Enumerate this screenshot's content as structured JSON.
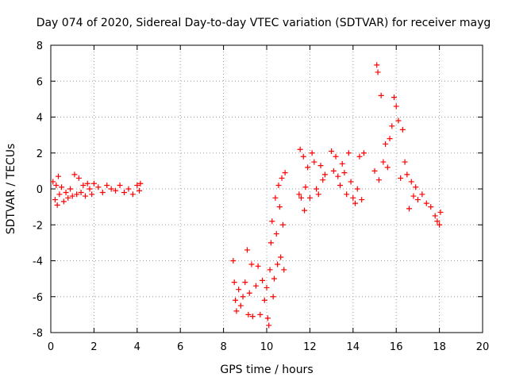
{
  "chart_data": {
    "type": "scatter",
    "title": "Day 074 of 2020, Sidereal Day-to-day VTEC variation (SDTVAR) for receiver mayg",
    "xlabel": "GPS time / hours",
    "ylabel": "SDTVAR / TECUs",
    "xlim": [
      0,
      20
    ],
    "ylim": [
      -8,
      8
    ],
    "xticks": [
      0,
      2,
      4,
      6,
      8,
      10,
      12,
      14,
      16,
      18,
      20
    ],
    "yticks": [
      -8,
      -6,
      -4,
      -2,
      0,
      2,
      4,
      6,
      8
    ],
    "grid": true,
    "marker": "+",
    "color": "#ff0000",
    "series": [
      {
        "name": "SDTVAR",
        "points": [
          [
            0.1,
            0.4
          ],
          [
            0.2,
            -0.6
          ],
          [
            0.25,
            0.2
          ],
          [
            0.3,
            -0.9
          ],
          [
            0.35,
            0.7
          ],
          [
            0.4,
            -0.3
          ],
          [
            0.5,
            0.1
          ],
          [
            0.6,
            -0.7
          ],
          [
            0.7,
            -0.2
          ],
          [
            0.8,
            -0.5
          ],
          [
            0.9,
            0.0
          ],
          [
            1.0,
            -0.4
          ],
          [
            1.1,
            0.8
          ],
          [
            1.2,
            -0.3
          ],
          [
            1.3,
            0.6
          ],
          [
            1.4,
            -0.2
          ],
          [
            1.5,
            0.2
          ],
          [
            1.6,
            -0.4
          ],
          [
            1.7,
            0.3
          ],
          [
            1.8,
            0.0
          ],
          [
            1.9,
            -0.3
          ],
          [
            2.0,
            0.3
          ],
          [
            2.2,
            0.1
          ],
          [
            2.4,
            -0.2
          ],
          [
            2.6,
            0.2
          ],
          [
            2.8,
            0.0
          ],
          [
            3.0,
            -0.1
          ],
          [
            3.2,
            0.2
          ],
          [
            3.4,
            -0.2
          ],
          [
            3.6,
            0.0
          ],
          [
            3.8,
            -0.3
          ],
          [
            4.0,
            0.2
          ],
          [
            4.1,
            -0.1
          ],
          [
            4.15,
            0.3
          ],
          [
            8.45,
            -4.0
          ],
          [
            8.5,
            -5.2
          ],
          [
            8.55,
            -6.2
          ],
          [
            8.6,
            -6.8
          ],
          [
            8.7,
            -5.6
          ],
          [
            8.8,
            -6.5
          ],
          [
            8.9,
            -6.0
          ],
          [
            9.0,
            -5.2
          ],
          [
            9.1,
            -3.4
          ],
          [
            9.15,
            -7.0
          ],
          [
            9.2,
            -5.8
          ],
          [
            9.3,
            -4.2
          ],
          [
            9.35,
            -7.1
          ],
          [
            9.5,
            -5.4
          ],
          [
            9.6,
            -4.3
          ],
          [
            9.7,
            -7.0
          ],
          [
            9.8,
            -5.1
          ],
          [
            9.9,
            -6.2
          ],
          [
            10.0,
            -5.5
          ],
          [
            10.05,
            -7.2
          ],
          [
            10.1,
            -7.6
          ],
          [
            10.15,
            -4.5
          ],
          [
            10.2,
            -3.0
          ],
          [
            10.25,
            -1.8
          ],
          [
            10.3,
            -6.0
          ],
          [
            10.35,
            -5.0
          ],
          [
            10.4,
            -0.5
          ],
          [
            10.45,
            -2.5
          ],
          [
            10.5,
            -4.2
          ],
          [
            10.55,
            0.2
          ],
          [
            10.6,
            -1.0
          ],
          [
            10.65,
            -3.8
          ],
          [
            10.7,
            0.6
          ],
          [
            10.75,
            -2.0
          ],
          [
            10.8,
            -4.5
          ],
          [
            10.85,
            0.9
          ],
          [
            11.5,
            -0.3
          ],
          [
            11.55,
            2.2
          ],
          [
            11.6,
            -0.5
          ],
          [
            11.7,
            1.8
          ],
          [
            11.75,
            -1.2
          ],
          [
            11.8,
            0.1
          ],
          [
            11.9,
            1.2
          ],
          [
            12.0,
            -0.5
          ],
          [
            12.1,
            2.0
          ],
          [
            12.2,
            1.5
          ],
          [
            12.3,
            0.0
          ],
          [
            12.4,
            -0.3
          ],
          [
            12.5,
            1.3
          ],
          [
            12.6,
            0.5
          ],
          [
            12.7,
            0.8
          ],
          [
            13.0,
            2.1
          ],
          [
            13.1,
            1.0
          ],
          [
            13.2,
            1.8
          ],
          [
            13.3,
            0.7
          ],
          [
            13.4,
            0.2
          ],
          [
            13.5,
            1.4
          ],
          [
            13.6,
            0.9
          ],
          [
            13.7,
            -0.3
          ],
          [
            13.8,
            2.0
          ],
          [
            13.9,
            0.4
          ],
          [
            14.0,
            -0.5
          ],
          [
            14.1,
            -0.8
          ],
          [
            14.2,
            0.0
          ],
          [
            14.3,
            1.8
          ],
          [
            14.4,
            -0.6
          ],
          [
            14.5,
            2.0
          ],
          [
            15.0,
            1.0
          ],
          [
            15.1,
            6.9
          ],
          [
            15.15,
            6.5
          ],
          [
            15.2,
            0.5
          ],
          [
            15.3,
            5.2
          ],
          [
            15.4,
            1.5
          ],
          [
            15.5,
            2.5
          ],
          [
            15.6,
            1.2
          ],
          [
            15.7,
            2.8
          ],
          [
            15.8,
            3.5
          ],
          [
            15.9,
            5.1
          ],
          [
            16.0,
            4.6
          ],
          [
            16.1,
            3.8
          ],
          [
            16.2,
            0.6
          ],
          [
            16.3,
            3.3
          ],
          [
            16.4,
            1.5
          ],
          [
            16.5,
            0.8
          ],
          [
            16.6,
            -1.1
          ],
          [
            16.7,
            0.4
          ],
          [
            16.8,
            -0.4
          ],
          [
            16.9,
            0.1
          ],
          [
            17.0,
            -0.6
          ],
          [
            17.2,
            -0.3
          ],
          [
            17.4,
            -0.8
          ],
          [
            17.6,
            -1.0
          ],
          [
            17.8,
            -1.5
          ],
          [
            17.9,
            -1.8
          ],
          [
            18.0,
            -2.0
          ],
          [
            18.05,
            -1.3
          ]
        ]
      }
    ]
  }
}
